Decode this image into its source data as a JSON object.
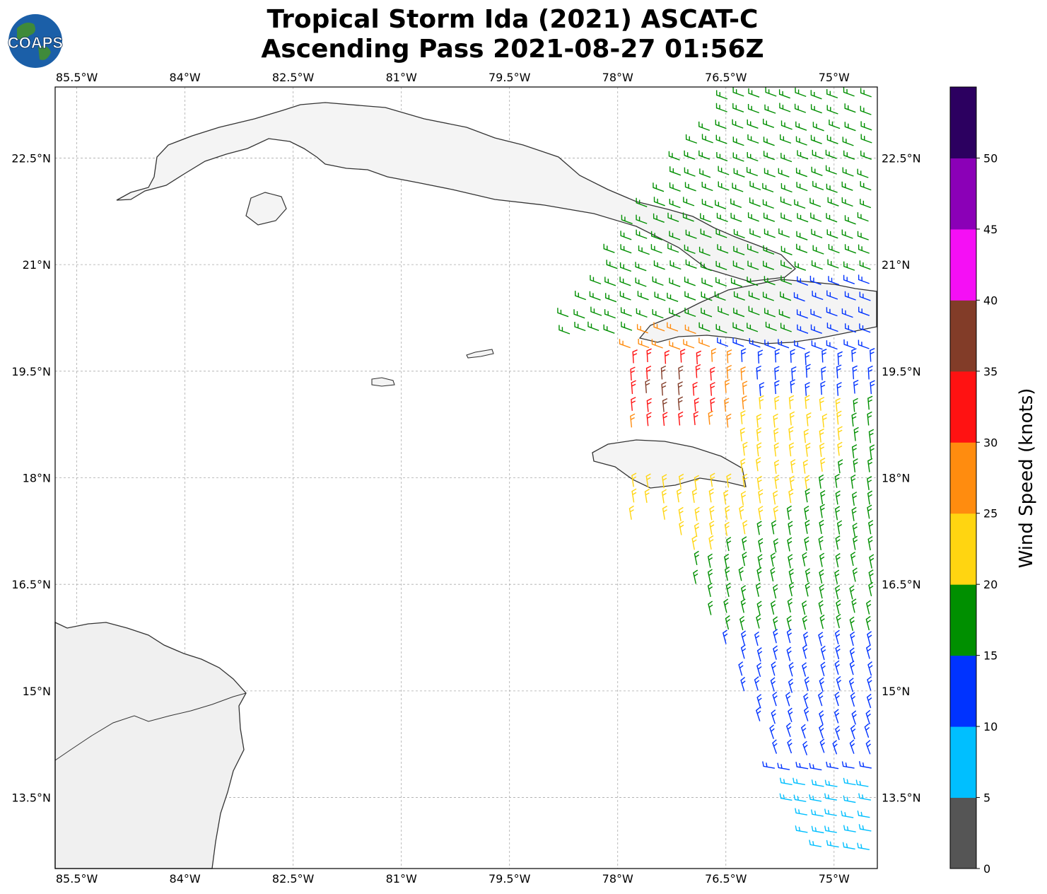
{
  "title": {
    "line1": "Tropical Storm Ida (2021) ASCAT-C",
    "line2": "Ascending Pass 2021-08-27 01:56Z"
  },
  "logo": {
    "text": "COAPS",
    "icon": "globe-logo-icon"
  },
  "map": {
    "lon_range": [
      -85.8,
      -74.4
    ],
    "lat_range": [
      12.5,
      23.5
    ],
    "lon_ticks": [
      "85.5°W",
      "84°W",
      "82.5°W",
      "81°W",
      "79.5°W",
      "78°W",
      "76.5°W",
      "75°W"
    ],
    "lat_ticks": [
      "22.5°N",
      "21°N",
      "19.5°N",
      "18°N",
      "16.5°N",
      "15°N",
      "13.5°N"
    ],
    "gridlines": true
  },
  "colorbar": {
    "label": "Wind Speed (knots)",
    "ticks": [
      "0",
      "5",
      "10",
      "15",
      "20",
      "25",
      "30",
      "35",
      "40",
      "45",
      "50"
    ],
    "colors": [
      "#555555",
      "#00bfff",
      "#0033ff",
      "#008f00",
      "#ffd511",
      "#ff8c0f",
      "#ff1212",
      "#823c28",
      "#f50ff5",
      "#8b00b7",
      "#2c0060"
    ]
  }
}
